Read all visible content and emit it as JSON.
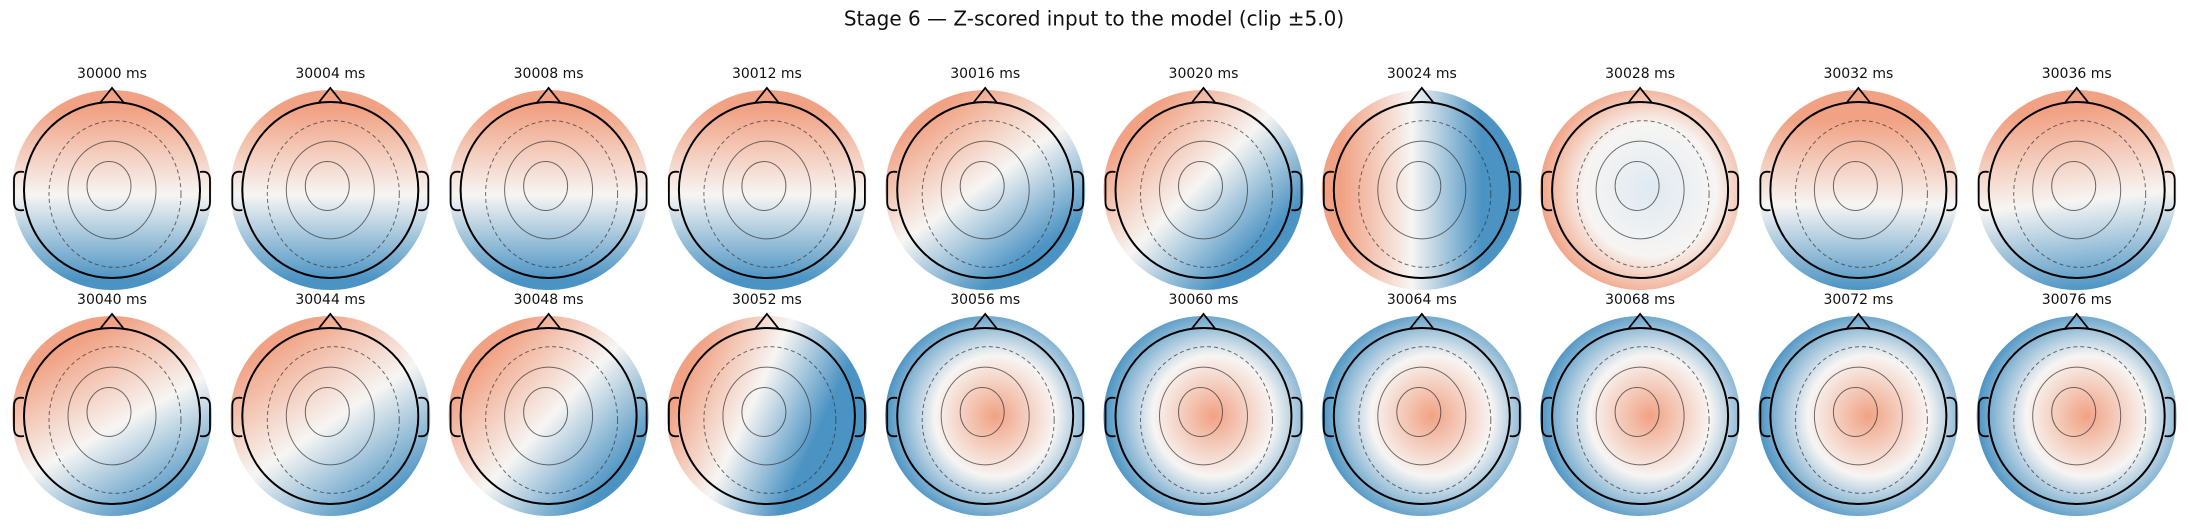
{
  "title": "Stage 6 — Z-scored input to the model (clip ±5.0)",
  "panels": [
    {
      "label": "30000 ms"
    },
    {
      "label": "30004 ms"
    },
    {
      "label": "30008 ms"
    },
    {
      "label": "30012 ms"
    },
    {
      "label": "30016 ms"
    },
    {
      "label": "30020 ms"
    },
    {
      "label": "30024 ms"
    },
    {
      "label": "30028 ms"
    },
    {
      "label": "30032 ms"
    },
    {
      "label": "30036 ms"
    },
    {
      "label": "30040 ms"
    },
    {
      "label": "30044 ms"
    },
    {
      "label": "30048 ms"
    },
    {
      "label": "30052 ms"
    },
    {
      "label": "30056 ms"
    },
    {
      "label": "30060 ms"
    },
    {
      "label": "30064 ms"
    },
    {
      "label": "30068 ms"
    },
    {
      "label": "30072 ms"
    },
    {
      "label": "30076 ms"
    }
  ]
}
